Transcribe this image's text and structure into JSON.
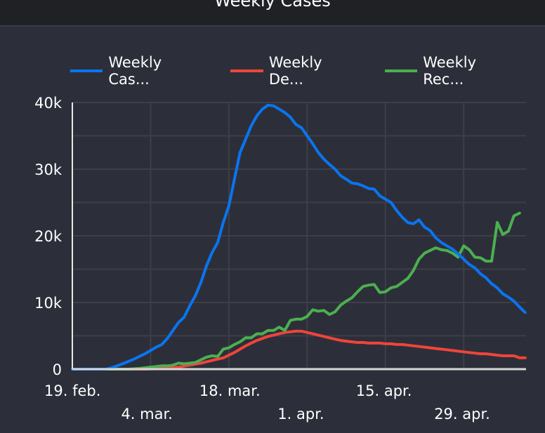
{
  "header": {
    "title": "Weekly Cases"
  },
  "chart_data": {
    "type": "line",
    "title": "Weekly Cases",
    "xlabel": "",
    "ylabel": "",
    "ylim": [
      0,
      40000
    ],
    "yticks": [
      0,
      10000,
      20000,
      30000,
      40000
    ],
    "ytick_labels": [
      "0",
      "10k",
      "20k",
      "30k",
      "40k"
    ],
    "xticks": [
      {
        "day": 0,
        "label": "19. feb.",
        "row": 1
      },
      {
        "day": 14,
        "label": "4. mar.",
        "row": 2
      },
      {
        "day": 28,
        "label": "18. mar.",
        "row": 1
      },
      {
        "day": 42,
        "label": "1. apr.",
        "row": 2
      },
      {
        "day": 56,
        "label": "15. apr.",
        "row": 1
      },
      {
        "day": 70,
        "label": "29. apr.",
        "row": 2
      }
    ],
    "x_range_days": [
      0,
      81
    ],
    "x_start_label": "19. feb.",
    "grid": true,
    "legend_position": "top",
    "series": [
      {
        "name": "Weekly Cas...",
        "color": "#0a74f0",
        "points": [
          [
            0,
            0
          ],
          [
            6,
            0
          ],
          [
            7,
            200
          ],
          [
            9,
            800
          ],
          [
            11,
            1500
          ],
          [
            13,
            2300
          ],
          [
            15,
            3300
          ],
          [
            16,
            3700
          ],
          [
            17,
            4600
          ],
          [
            18,
            5800
          ],
          [
            19,
            7000
          ],
          [
            20,
            7800
          ],
          [
            21,
            9500
          ],
          [
            22,
            11000
          ],
          [
            23,
            13000
          ],
          [
            24,
            15500
          ],
          [
            25,
            17500
          ],
          [
            26,
            19000
          ],
          [
            27,
            22000
          ],
          [
            28,
            24500
          ],
          [
            29,
            28500
          ],
          [
            30,
            32500
          ],
          [
            31,
            34500
          ],
          [
            32,
            36500
          ],
          [
            33,
            38000
          ],
          [
            34,
            39000
          ],
          [
            35,
            39600
          ],
          [
            36,
            39500
          ],
          [
            37,
            39000
          ],
          [
            38,
            38500
          ],
          [
            39,
            37800
          ],
          [
            40,
            36700
          ],
          [
            41,
            36200
          ],
          [
            42,
            35000
          ],
          [
            43,
            33800
          ],
          [
            44,
            32500
          ],
          [
            45,
            31500
          ],
          [
            46,
            30700
          ],
          [
            47,
            30000
          ],
          [
            48,
            29000
          ],
          [
            49,
            28500
          ],
          [
            50,
            27900
          ],
          [
            51,
            27800
          ],
          [
            52,
            27500
          ],
          [
            53,
            27100
          ],
          [
            54,
            27000
          ],
          [
            55,
            26000
          ],
          [
            56,
            25500
          ],
          [
            57,
            25000
          ],
          [
            58,
            23800
          ],
          [
            59,
            22800
          ],
          [
            60,
            22000
          ],
          [
            61,
            21800
          ],
          [
            62,
            22400
          ],
          [
            63,
            21300
          ],
          [
            64,
            20800
          ],
          [
            65,
            19700
          ],
          [
            66,
            19000
          ],
          [
            67,
            18500
          ],
          [
            68,
            18000
          ],
          [
            69,
            17300
          ],
          [
            70,
            16500
          ],
          [
            71,
            15700
          ],
          [
            72,
            15200
          ],
          [
            73,
            14300
          ],
          [
            74,
            13700
          ],
          [
            75,
            12800
          ],
          [
            76,
            12200
          ],
          [
            77,
            11300
          ],
          [
            78,
            10800
          ],
          [
            79,
            10200
          ],
          [
            80,
            9300
          ],
          [
            81,
            8500
          ]
        ]
      },
      {
        "name": "Weekly De...",
        "color": "#f0443a",
        "points": [
          [
            0,
            0
          ],
          [
            13,
            0
          ],
          [
            16,
            100
          ],
          [
            19,
            300
          ],
          [
            21,
            600
          ],
          [
            23,
            900
          ],
          [
            25,
            1300
          ],
          [
            27,
            1700
          ],
          [
            28,
            2100
          ],
          [
            29,
            2500
          ],
          [
            30,
            3000
          ],
          [
            31,
            3500
          ],
          [
            32,
            3900
          ],
          [
            33,
            4300
          ],
          [
            34,
            4600
          ],
          [
            35,
            4900
          ],
          [
            36,
            5100
          ],
          [
            37,
            5300
          ],
          [
            38,
            5500
          ],
          [
            39,
            5600
          ],
          [
            40,
            5700
          ],
          [
            41,
            5700
          ],
          [
            42,
            5500
          ],
          [
            43,
            5300
          ],
          [
            44,
            5100
          ],
          [
            45,
            4900
          ],
          [
            46,
            4700
          ],
          [
            47,
            4500
          ],
          [
            48,
            4300
          ],
          [
            49,
            4200
          ],
          [
            50,
            4100
          ],
          [
            51,
            4000
          ],
          [
            52,
            4000
          ],
          [
            53,
            3900
          ],
          [
            54,
            3900
          ],
          [
            55,
            3900
          ],
          [
            56,
            3800
          ],
          [
            57,
            3800
          ],
          [
            58,
            3700
          ],
          [
            59,
            3700
          ],
          [
            60,
            3600
          ],
          [
            61,
            3500
          ],
          [
            62,
            3400
          ],
          [
            63,
            3300
          ],
          [
            64,
            3200
          ],
          [
            65,
            3100
          ],
          [
            66,
            3000
          ],
          [
            67,
            2900
          ],
          [
            68,
            2800
          ],
          [
            69,
            2700
          ],
          [
            70,
            2600
          ],
          [
            71,
            2500
          ],
          [
            72,
            2400
          ],
          [
            73,
            2300
          ],
          [
            74,
            2300
          ],
          [
            75,
            2200
          ],
          [
            76,
            2100
          ],
          [
            77,
            2000
          ],
          [
            78,
            2000
          ],
          [
            79,
            2000
          ],
          [
            80,
            1700
          ],
          [
            81,
            1700
          ]
        ]
      },
      {
        "name": "Weekly Rec...",
        "color": "#4caf50",
        "points": [
          [
            0,
            0
          ],
          [
            10,
            0
          ],
          [
            12,
            100
          ],
          [
            14,
            300
          ],
          [
            16,
            500
          ],
          [
            17,
            500
          ],
          [
            18,
            600
          ],
          [
            19,
            900
          ],
          [
            20,
            800
          ],
          [
            21,
            900
          ],
          [
            22,
            1000
          ],
          [
            23,
            1400
          ],
          [
            24,
            1800
          ],
          [
            25,
            2000
          ],
          [
            26,
            1900
          ],
          [
            27,
            3000
          ],
          [
            28,
            3200
          ],
          [
            29,
            3700
          ],
          [
            30,
            4100
          ],
          [
            31,
            4700
          ],
          [
            32,
            4700
          ],
          [
            33,
            5300
          ],
          [
            34,
            5300
          ],
          [
            35,
            5800
          ],
          [
            36,
            5800
          ],
          [
            37,
            6300
          ],
          [
            38,
            5800
          ],
          [
            39,
            7300
          ],
          [
            40,
            7500
          ],
          [
            41,
            7500
          ],
          [
            42,
            7900
          ],
          [
            43,
            8900
          ],
          [
            44,
            8700
          ],
          [
            45,
            8800
          ],
          [
            46,
            8200
          ],
          [
            47,
            8600
          ],
          [
            48,
            9600
          ],
          [
            49,
            10200
          ],
          [
            50,
            10700
          ],
          [
            51,
            11600
          ],
          [
            52,
            12400
          ],
          [
            53,
            12600
          ],
          [
            54,
            12700
          ],
          [
            55,
            11500
          ],
          [
            56,
            11600
          ],
          [
            57,
            12200
          ],
          [
            58,
            12400
          ],
          [
            59,
            13000
          ],
          [
            60,
            13600
          ],
          [
            61,
            14800
          ],
          [
            62,
            16500
          ],
          [
            63,
            17400
          ],
          [
            64,
            17800
          ],
          [
            65,
            18200
          ],
          [
            66,
            17900
          ],
          [
            67,
            17800
          ],
          [
            68,
            17400
          ],
          [
            69,
            16800
          ],
          [
            70,
            18500
          ],
          [
            71,
            17900
          ],
          [
            72,
            16800
          ],
          [
            73,
            16700
          ],
          [
            74,
            16200
          ],
          [
            75,
            16200
          ],
          [
            76,
            22000
          ],
          [
            77,
            20200
          ],
          [
            78,
            20700
          ],
          [
            79,
            23000
          ],
          [
            80,
            23400
          ]
        ]
      }
    ]
  }
}
